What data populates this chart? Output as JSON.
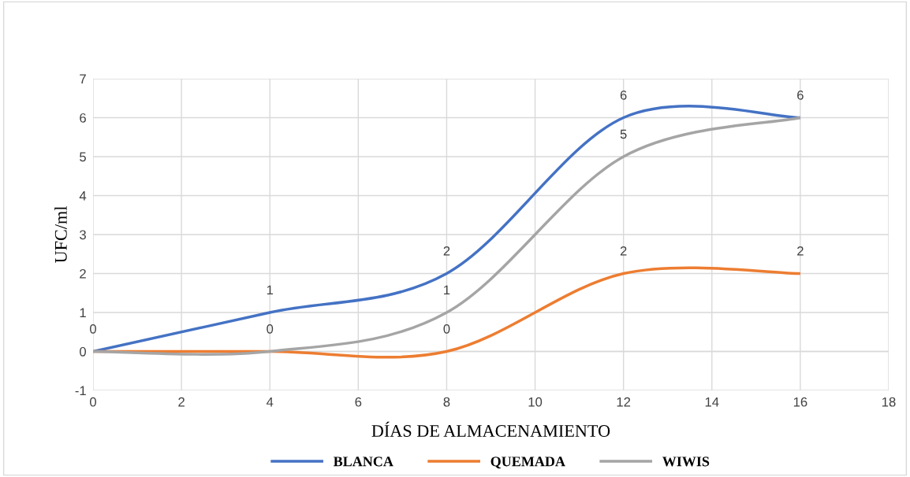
{
  "chart_data": {
    "type": "line",
    "xlabel": "DÍAS DE ALMACENAMIENTO",
    "ylabel": "UFC/ml",
    "x": [
      0,
      4,
      8,
      12,
      16
    ],
    "series": [
      {
        "name": "BLANCA",
        "color": "#4472c4",
        "values": [
          0,
          1,
          2,
          6,
          6
        ],
        "value_labels": [
          "0",
          "1",
          "2",
          "6",
          "6"
        ]
      },
      {
        "name": "QUEMADA",
        "color": "#ed7d31",
        "values": [
          0,
          0,
          0,
          2,
          2
        ],
        "value_labels": [
          null,
          null,
          "0",
          "2",
          "2"
        ]
      },
      {
        "name": "WIWIS",
        "color": "#a5a5a5",
        "values": [
          0,
          0,
          1,
          5,
          6
        ],
        "value_labels": [
          null,
          "0",
          "1",
          "5",
          null
        ]
      }
    ],
    "xlim": [
      0,
      18
    ],
    "xticks": [
      0,
      2,
      4,
      6,
      8,
      10,
      12,
      14,
      16,
      18
    ],
    "ylim": [
      -1,
      7
    ],
    "yticks": [
      -1,
      0,
      1,
      2,
      3,
      4,
      5,
      6,
      7
    ],
    "grid": true,
    "legend": "bottom",
    "marker": "none",
    "line_style": "solid"
  }
}
